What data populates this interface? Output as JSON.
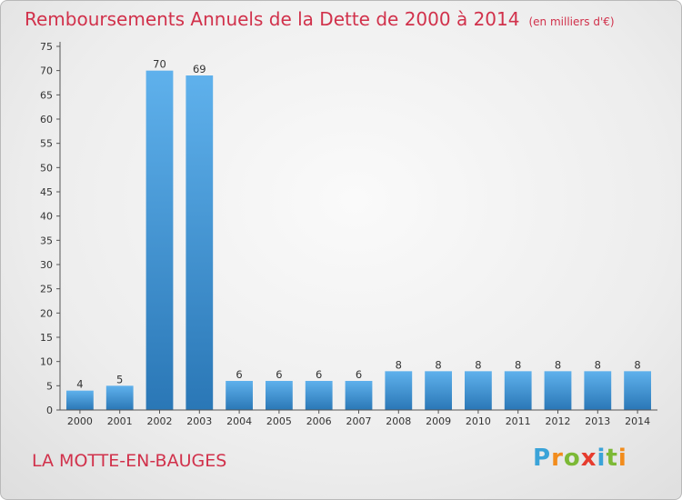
{
  "title": "Remboursements Annuels de la Dette de 2000 à 2014",
  "subtitle": "(en milliers d'€)",
  "place": "LA MOTTE-EN-BAUGES",
  "logo": {
    "letters": [
      "P",
      "r",
      "o",
      "x",
      "i",
      "t",
      "i"
    ],
    "colors": [
      "#3aa3d8",
      "#f28c1c",
      "#7cb936",
      "#e63c2e",
      "#3aa3d8",
      "#7cb936",
      "#f28c1c"
    ]
  },
  "chart_data": {
    "type": "bar",
    "title": "Remboursements Annuels de la Dette de 2000 à 2014",
    "subtitle": "(en milliers d'€)",
    "categories": [
      "2000",
      "2001",
      "2002",
      "2003",
      "2004",
      "2005",
      "2006",
      "2007",
      "2008",
      "2009",
      "2010",
      "2011",
      "2012",
      "2013",
      "2014"
    ],
    "values": [
      4,
      5,
      70,
      69,
      6,
      6,
      6,
      6,
      8,
      8,
      8,
      8,
      8,
      8,
      8
    ],
    "data_labels": [
      "4",
      "5",
      "70",
      "69",
      "6",
      "6",
      "6",
      "6",
      "8",
      "8",
      "8",
      "8",
      "8",
      "8",
      "8"
    ],
    "ylim": [
      0,
      75
    ],
    "yticks": [
      0,
      5,
      10,
      15,
      20,
      25,
      30,
      35,
      40,
      45,
      50,
      55,
      60,
      65,
      70,
      75
    ],
    "grid": false,
    "bar_color": "#3d8fd1"
  }
}
